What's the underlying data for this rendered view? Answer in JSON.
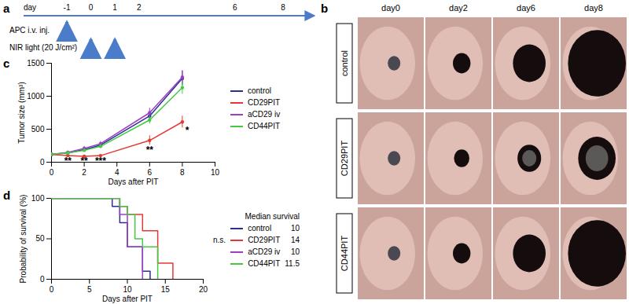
{
  "timeline": {
    "panel_label": "a",
    "axis_label": "day",
    "ticks": [
      -1,
      0,
      1,
      2,
      6,
      8
    ],
    "events": [
      {
        "label": "APC i.v. inj.",
        "days": [
          -1
        ]
      },
      {
        "label": "NIR light (20 J/cm²)",
        "days": [
          0,
          1
        ]
      }
    ]
  },
  "photos": {
    "panel_label": "b",
    "columns": [
      "day0",
      "day2",
      "day6",
      "day8"
    ],
    "rows": [
      "control",
      "CD29PIT",
      "CD44PIT"
    ]
  },
  "chart_data": [
    {
      "panel_label": "c",
      "type": "line",
      "x_label": "Days after PIT",
      "y_label": "Tumor size (mm³)",
      "x": [
        0,
        1,
        2,
        3,
        6,
        8
      ],
      "xlim": [
        0,
        10
      ],
      "xticks": [
        0,
        2,
        4,
        6,
        8,
        10
      ],
      "ylim": [
        0,
        1500
      ],
      "yticks": [
        0,
        500,
        1000,
        1500
      ],
      "marker": "circle",
      "legend": "right",
      "series": [
        {
          "name": "control",
          "color": "#2b2f8f",
          "values": [
            120,
            140,
            190,
            260,
            700,
            1270
          ],
          "errors": [
            15,
            20,
            25,
            35,
            60,
            110
          ]
        },
        {
          "name": "CD29PIT",
          "color": "#e53935",
          "values": [
            115,
            100,
            90,
            100,
            330,
            610
          ],
          "errors": [
            15,
            15,
            15,
            20,
            70,
            90
          ]
        },
        {
          "name": "aCD29 iv",
          "color": "#9b3fc6",
          "values": [
            120,
            150,
            210,
            280,
            750,
            1290
          ],
          "errors": [
            15,
            20,
            30,
            35,
            70,
            100
          ]
        },
        {
          "name": "CD44PIT",
          "color": "#43c943",
          "values": [
            120,
            140,
            180,
            240,
            640,
            1130
          ],
          "errors": [
            15,
            20,
            25,
            30,
            60,
            100
          ]
        }
      ],
      "annotations": [
        {
          "x": 1,
          "y": 20,
          "text": "**"
        },
        {
          "x": 2,
          "y": 20,
          "text": "**"
        },
        {
          "x": 3,
          "y": 20,
          "text": "***"
        },
        {
          "x": 6,
          "y": 180,
          "text": "**"
        },
        {
          "x": 8.3,
          "y": 480,
          "text": "*"
        }
      ]
    },
    {
      "panel_label": "d",
      "type": "step",
      "x_label": "Days after PIT",
      "y_label": "Probability of survival (%)",
      "xlim": [
        0,
        20
      ],
      "xticks": [
        0,
        5,
        10,
        15,
        20
      ],
      "ylim": [
        0,
        100
      ],
      "yticks": [
        0,
        50,
        100
      ],
      "legend": "right",
      "legend_title": "Median survival",
      "annotations": [
        {
          "text": "n.s."
        }
      ],
      "series": [
        {
          "name": "control",
          "color": "#2b2f8f",
          "x": [
            0,
            8,
            9,
            10,
            12,
            13
          ],
          "values": [
            100,
            90,
            70,
            40,
            10,
            0
          ],
          "median_survival": 10
        },
        {
          "name": "CD29PIT",
          "color": "#e53935",
          "x": [
            0,
            9,
            10,
            12,
            14,
            16
          ],
          "values": [
            100,
            90,
            80,
            60,
            20,
            0
          ],
          "median_survival": 14
        },
        {
          "name": "aCD29 iv",
          "color": "#9b3fc6",
          "x": [
            0,
            9,
            10,
            12
          ],
          "values": [
            100,
            80,
            40,
            0
          ],
          "median_survival": 10
        },
        {
          "name": "CD44PIT",
          "color": "#43c943",
          "x": [
            0,
            9,
            10,
            11,
            12,
            14
          ],
          "values": [
            100,
            90,
            80,
            50,
            40,
            0
          ],
          "median_survival": 11.5
        }
      ]
    }
  ]
}
